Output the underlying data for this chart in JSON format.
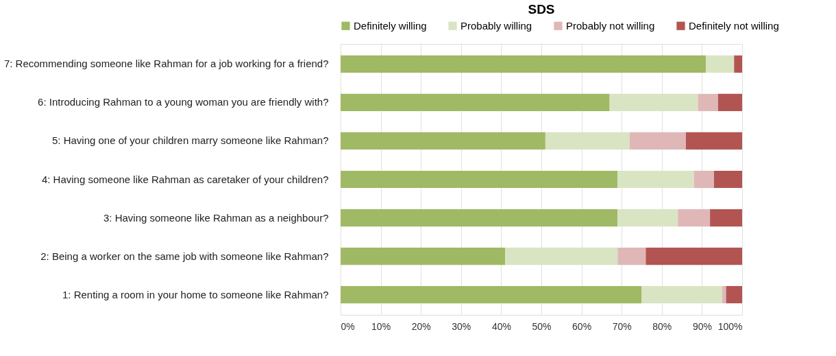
{
  "chart_data": {
    "type": "bar",
    "orientation": "horizontal",
    "stacked": true,
    "title": "SDS",
    "categories": [
      "7: Recommending someone like Rahman for a job working for a friend?",
      "6: Introducing Rahman to a young woman you are friendly with?",
      "5: Having one of your children marry someone like Rahman?",
      "4: Having someone like Rahman as caretaker of your children?",
      "3: Having someone like Rahman as a neighbour?",
      "2: Being a worker on the same job with someone like Rahman?",
      "1: Renting a room in your home to someone like Rahman?"
    ],
    "series": [
      {
        "name": "Definitely willing",
        "color": "#a0b964",
        "values": [
          91,
          67,
          51,
          69,
          69,
          41,
          75
        ]
      },
      {
        "name": "Probably willing",
        "color": "#d9e4c3",
        "values": [
          7,
          22,
          21,
          19,
          15,
          28,
          20
        ]
      },
      {
        "name": "Probably not willing",
        "color": "#e0b7b7",
        "values": [
          0,
          5,
          14,
          5,
          8,
          7,
          1
        ]
      },
      {
        "name": "Definitely not willing",
        "color": "#b25552",
        "values": [
          2,
          6,
          14,
          7,
          8,
          24,
          4
        ]
      }
    ],
    "xlim": [
      0,
      100
    ],
    "xticks": [
      {
        "value": 0,
        "label": "0%"
      },
      {
        "value": 10,
        "label": "10%"
      },
      {
        "value": 20,
        "label": "20%"
      },
      {
        "value": 30,
        "label": "30%"
      },
      {
        "value": 40,
        "label": "40%"
      },
      {
        "value": 50,
        "label": "50%"
      },
      {
        "value": 60,
        "label": "60%"
      },
      {
        "value": 70,
        "label": "70%"
      },
      {
        "value": 80,
        "label": "80%"
      },
      {
        "value": 90,
        "label": "90%"
      },
      {
        "value": 100,
        "label": "100%"
      }
    ],
    "grid": "x",
    "legend": "top"
  }
}
